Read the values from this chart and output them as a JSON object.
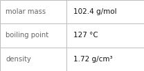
{
  "rows": [
    {
      "label": "molar mass",
      "value": "102.4 g/mol"
    },
    {
      "label": "boiling point",
      "value": "127 °C"
    },
    {
      "label": "density",
      "value": "1.72 g/cm³"
    }
  ],
  "background_color": "#ffffff",
  "border_color": "#bbbbbb",
  "label_color": "#666666",
  "value_color": "#111111",
  "label_fontsize": 7.2,
  "value_fontsize": 7.5,
  "col_split": 0.46
}
